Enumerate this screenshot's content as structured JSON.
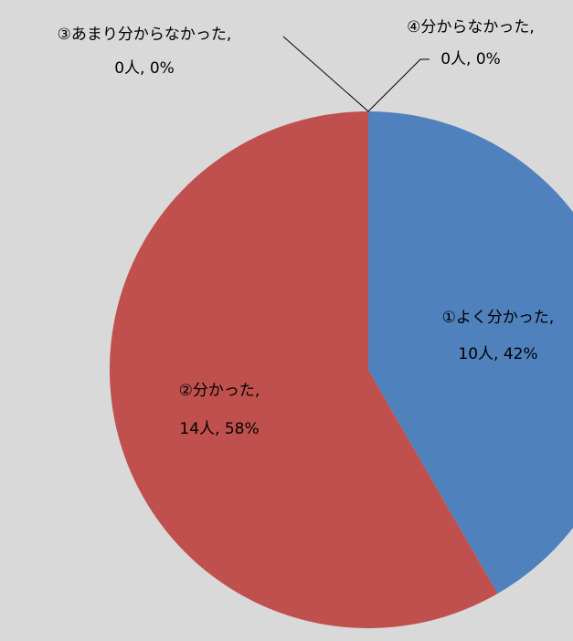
{
  "chart_data": {
    "type": "pie",
    "categories": [
      "①よく分かった",
      "②分かった",
      "③あまり分からなかった",
      "④分からなかった"
    ],
    "values": [
      10,
      14,
      0,
      0
    ],
    "value_labels": [
      "10人",
      "14人",
      "0人",
      "0人"
    ],
    "percentages": [
      42,
      58,
      0,
      0
    ],
    "percentage_labels": [
      "42%",
      "58%",
      "0%",
      "0%"
    ],
    "label_separator": ", ",
    "colors": [
      "#4f81bd",
      "#c0504d",
      "#9bbb59",
      "#8064a2"
    ]
  }
}
